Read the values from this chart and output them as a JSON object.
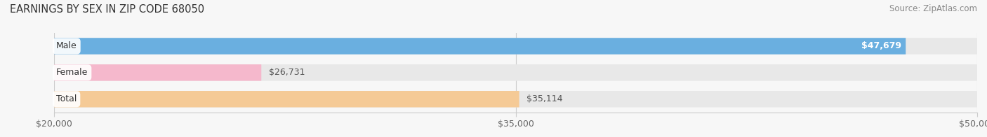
{
  "title": "EARNINGS BY SEX IN ZIP CODE 68050",
  "source": "Source: ZipAtlas.com",
  "categories": [
    "Male",
    "Female",
    "Total"
  ],
  "values": [
    47679,
    26731,
    35114
  ],
  "bar_colors": [
    "#6aafe0",
    "#f5b8cc",
    "#f5ca96"
  ],
  "value_labels": [
    "$47,679",
    "$26,731",
    "$35,114"
  ],
  "value_label_inside": [
    true,
    false,
    false
  ],
  "value_label_color_inside": "#ffffff",
  "value_label_color_outside": "#555555",
  "xmin": 20000,
  "xmax": 50000,
  "xticks": [
    20000,
    35000,
    50000
  ],
  "xtick_labels": [
    "$20,000",
    "$35,000",
    "$50,000"
  ],
  "background_color": "#f7f7f7",
  "bar_background_color": "#e8e8e8",
  "title_fontsize": 10.5,
  "source_fontsize": 8.5,
  "label_fontsize": 9,
  "value_fontsize": 9,
  "tick_fontsize": 9
}
